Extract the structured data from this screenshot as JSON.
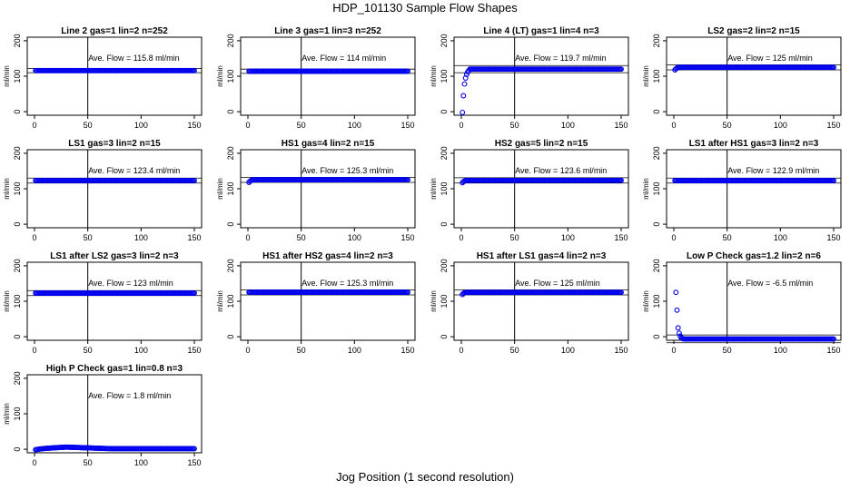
{
  "page": {
    "title": "HDP_101130  Sample Flow Shapes",
    "x_title": "Jog Position (1 second resolution)"
  },
  "chart_data": [
    {
      "type": "scatter",
      "title": "Line 2 gas=1 lin=2 n=252",
      "ylabel": "ml/min",
      "annotation": "Ave. Flow =  115.8  ml/min",
      "avg": 115.8,
      "xlim": [
        0,
        150
      ],
      "ylim": [
        -10,
        210
      ],
      "xticks": [
        0,
        50,
        100,
        150
      ],
      "yticks": [
        0,
        100,
        200
      ],
      "vline": 50,
      "hlines": [
        110,
        122
      ],
      "series": [
        {
          "x_range": [
            1,
            150
          ],
          "level": 115.8,
          "ramp": []
        }
      ]
    },
    {
      "type": "scatter",
      "title": "Line 3 gas=1 lin=3 n=252",
      "ylabel": "ml/min",
      "annotation": "Ave. Flow =  114  ml/min",
      "avg": 114,
      "xlim": [
        0,
        150
      ],
      "ylim": [
        -10,
        210
      ],
      "xticks": [
        0,
        50,
        100,
        150
      ],
      "yticks": [
        0,
        100,
        200
      ],
      "vline": 50,
      "hlines": [
        108,
        120
      ],
      "series": [
        {
          "x_range": [
            1,
            150
          ],
          "level": 114,
          "ramp": []
        }
      ]
    },
    {
      "type": "scatter",
      "title": "Line 4 (LT) gas=1 lin=4 n=3",
      "ylabel": "ml/min",
      "annotation": "Ave. Flow =  119.7  ml/min",
      "avg": 119.7,
      "xlim": [
        0,
        150
      ],
      "ylim": [
        -10,
        210
      ],
      "xticks": [
        0,
        50,
        100,
        150
      ],
      "yticks": [
        0,
        100,
        200
      ],
      "vline": 50,
      "hlines": [
        110,
        130
      ],
      "series": [
        {
          "x_range": [
            8,
            150
          ],
          "level": 120,
          "ramp": [
            [
              1,
              -2
            ],
            [
              2,
              45
            ],
            [
              3,
              78
            ],
            [
              4,
              95
            ],
            [
              5,
              105
            ],
            [
              6,
              112
            ],
            [
              7,
              116
            ]
          ]
        }
      ]
    },
    {
      "type": "scatter",
      "title": "LS2 gas=2 lin=2 n=15",
      "ylabel": "ml/min",
      "annotation": "Ave. Flow =  125  ml/min",
      "avg": 125,
      "xlim": [
        0,
        150
      ],
      "ylim": [
        -10,
        210
      ],
      "xticks": [
        0,
        50,
        100,
        150
      ],
      "yticks": [
        0,
        100,
        200
      ],
      "vline": 50,
      "hlines": [
        118,
        132
      ],
      "series": [
        {
          "x_range": [
            4,
            150
          ],
          "level": 125,
          "ramp": [
            [
              1,
              118
            ],
            [
              2,
              121
            ],
            [
              3,
              123
            ]
          ]
        }
      ]
    },
    {
      "type": "scatter",
      "title": "LS1 gas=3 lin=2 n=15",
      "ylabel": "ml/min",
      "annotation": "Ave. Flow =  123.4  ml/min",
      "avg": 123.4,
      "xlim": [
        0,
        150
      ],
      "ylim": [
        -10,
        210
      ],
      "xticks": [
        0,
        50,
        100,
        150
      ],
      "yticks": [
        0,
        100,
        200
      ],
      "vline": 50,
      "hlines": [
        116,
        130
      ],
      "series": [
        {
          "x_range": [
            1,
            150
          ],
          "level": 123.4,
          "ramp": []
        }
      ]
    },
    {
      "type": "scatter",
      "title": "HS1 gas=4 lin=2 n=15",
      "ylabel": "ml/min",
      "annotation": "Ave. Flow =  125.3  ml/min",
      "avg": 125.3,
      "xlim": [
        0,
        150
      ],
      "ylim": [
        -10,
        210
      ],
      "xticks": [
        0,
        50,
        100,
        150
      ],
      "yticks": [
        0,
        100,
        200
      ],
      "vline": 50,
      "hlines": [
        118,
        132
      ],
      "series": [
        {
          "x_range": [
            4,
            150
          ],
          "level": 125.3,
          "ramp": [
            [
              1,
              118
            ],
            [
              2,
              121
            ],
            [
              3,
              123
            ]
          ]
        }
      ]
    },
    {
      "type": "scatter",
      "title": "HS2 gas=5 lin=2 n=15",
      "ylabel": "ml/min",
      "annotation": "Ave. Flow =  123.6  ml/min",
      "avg": 123.6,
      "xlim": [
        0,
        150
      ],
      "ylim": [
        -10,
        210
      ],
      "xticks": [
        0,
        50,
        100,
        150
      ],
      "yticks": [
        0,
        100,
        200
      ],
      "vline": 50,
      "hlines": [
        116,
        131
      ],
      "series": [
        {
          "x_range": [
            4,
            150
          ],
          "level": 123.6,
          "ramp": [
            [
              1,
              117
            ],
            [
              2,
              120
            ],
            [
              3,
              122
            ]
          ]
        }
      ]
    },
    {
      "type": "scatter",
      "title": "LS1 after HS1 gas=3 lin=2 n=3",
      "ylabel": "ml/min",
      "annotation": "Ave. Flow =  122.9  ml/min",
      "avg": 122.9,
      "xlim": [
        0,
        150
      ],
      "ylim": [
        -10,
        210
      ],
      "xticks": [
        0,
        50,
        100,
        150
      ],
      "yticks": [
        0,
        100,
        200
      ],
      "vline": 50,
      "hlines": [
        116,
        130
      ],
      "series": [
        {
          "x_range": [
            1,
            150
          ],
          "level": 122.9,
          "ramp": []
        }
      ]
    },
    {
      "type": "scatter",
      "title": "LS1 after LS2 gas=3 lin=2 n=3",
      "ylabel": "ml/min",
      "annotation": "Ave. Flow =  123  ml/min",
      "avg": 123,
      "xlim": [
        0,
        150
      ],
      "ylim": [
        -10,
        210
      ],
      "xticks": [
        0,
        50,
        100,
        150
      ],
      "yticks": [
        0,
        100,
        200
      ],
      "vline": 50,
      "hlines": [
        116,
        130
      ],
      "series": [
        {
          "x_range": [
            1,
            150
          ],
          "level": 123,
          "ramp": []
        }
      ]
    },
    {
      "type": "scatter",
      "title": "HS1 after HS2 gas=4 lin=2 n=3",
      "ylabel": "ml/min",
      "annotation": "Ave. Flow =  125.3  ml/min",
      "avg": 125.3,
      "xlim": [
        0,
        150
      ],
      "ylim": [
        -10,
        210
      ],
      "xticks": [
        0,
        50,
        100,
        150
      ],
      "yticks": [
        0,
        100,
        200
      ],
      "vline": 50,
      "hlines": [
        118,
        132
      ],
      "series": [
        {
          "x_range": [
            1,
            150
          ],
          "level": 125.3,
          "ramp": []
        }
      ]
    },
    {
      "type": "scatter",
      "title": "HS1 after LS1 gas=4 lin=2 n=3",
      "ylabel": "ml/min",
      "annotation": "Ave. Flow =  125  ml/min",
      "avg": 125,
      "xlim": [
        0,
        150
      ],
      "ylim": [
        -10,
        210
      ],
      "xticks": [
        0,
        50,
        100,
        150
      ],
      "yticks": [
        0,
        100,
        200
      ],
      "vline": 50,
      "hlines": [
        118,
        132
      ],
      "series": [
        {
          "x_range": [
            4,
            150
          ],
          "level": 125,
          "ramp": [
            [
              1,
              119
            ],
            [
              2,
              122
            ],
            [
              3,
              124
            ]
          ]
        }
      ]
    },
    {
      "type": "scatter",
      "title": "Low P Check gas=1.2 lin=2 n=6",
      "ylabel": "ml/min",
      "annotation": "Ave. Flow =  -6.5  ml/min",
      "avg": -6.5,
      "xlim": [
        0,
        150
      ],
      "ylim": [
        -10,
        210
      ],
      "xticks": [
        0,
        50,
        100,
        150
      ],
      "yticks": [
        0,
        100,
        200
      ],
      "vline": 50,
      "hlines": [
        -17,
        5
      ],
      "series": [
        {
          "x_range": [
            10,
            150
          ],
          "level": -6.5,
          "ramp": [
            [
              2,
              125
            ],
            [
              3,
              75
            ],
            [
              4,
              25
            ],
            [
              5,
              10
            ],
            [
              6,
              2
            ],
            [
              7,
              -3
            ],
            [
              8,
              -5
            ],
            [
              9,
              -6
            ]
          ]
        }
      ]
    },
    {
      "type": "scatter",
      "title": "High P Check gas=1 lin=0.8 n=3",
      "ylabel": "ml/min",
      "annotation": "Ave. Flow =  1.8  ml/min",
      "avg": 1.8,
      "xlim": [
        0,
        150
      ],
      "ylim": [
        -10,
        210
      ],
      "xticks": [
        0,
        50,
        100,
        150
      ],
      "yticks": [
        0,
        100,
        200
      ],
      "vline": 50,
      "hlines": [],
      "series": [
        {
          "x_range": [
            1,
            150
          ],
          "level": 1.8,
          "ramp": [],
          "hump": {
            "start": -3,
            "peak": 6,
            "peak_x": 30
          }
        }
      ]
    }
  ]
}
